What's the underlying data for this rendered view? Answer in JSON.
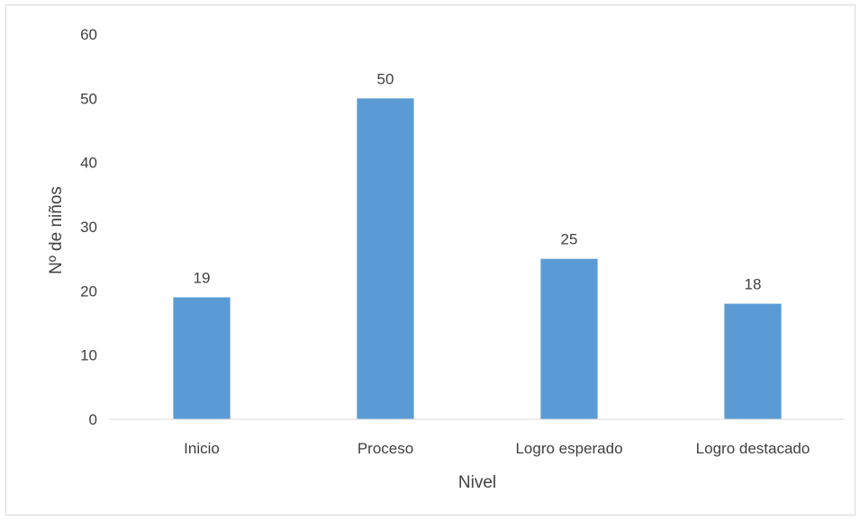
{
  "chart_data": {
    "type": "bar",
    "categories": [
      "Inicio",
      "Proceso",
      "Logro esperado",
      "Logro destacado"
    ],
    "values": [
      19,
      50,
      25,
      18
    ],
    "data_labels": [
      "19",
      "50",
      "25",
      "18"
    ],
    "xlabel": "Nivel",
    "ylabel": "Nº de niños",
    "ylim": [
      0,
      60
    ],
    "yticks": [
      0,
      10,
      20,
      30,
      40,
      50,
      60
    ],
    "ytick_labels": [
      "0",
      "10",
      "20",
      "30",
      "40",
      "50",
      "60"
    ],
    "grid": false,
    "bar_color": "#5b9bd5",
    "axis_color": "#d9d9d9",
    "text_color": "#404040"
  }
}
